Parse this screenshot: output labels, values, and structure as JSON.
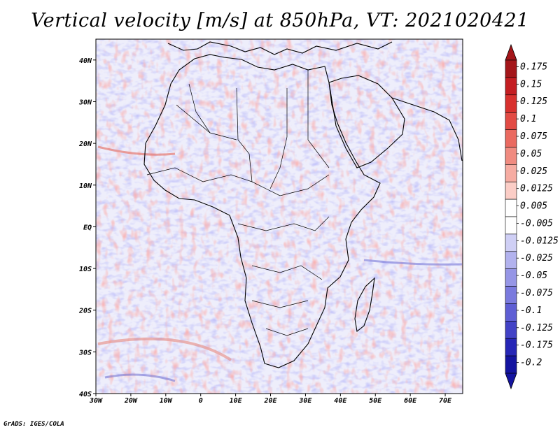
{
  "title": "Vertical velocity [m/s] at 850hPa, VT: 2021020421",
  "map": {
    "type": "heatmap",
    "variable": "Vertical velocity",
    "units": "m/s",
    "level": "850hPa",
    "valid_time": "2021020421",
    "lon_range": [
      -30,
      75
    ],
    "lat_range": [
      -40,
      45
    ],
    "x_ticks": [
      "30W",
      "20W",
      "10W",
      "0",
      "10E",
      "20E",
      "30E",
      "40E",
      "50E",
      "60E",
      "70E"
    ],
    "y_ticks": [
      "40N",
      "30N",
      "20N",
      "10N",
      "EQ",
      "10S",
      "20S",
      "30S",
      "40S"
    ]
  },
  "colorbar": {
    "levels": [
      "0.175",
      "0.15",
      "0.125",
      "0.1",
      "0.075",
      "0.05",
      "0.025",
      "0.0125",
      "0.005",
      "-0.005",
      "-0.0125",
      "-0.025",
      "-0.05",
      "-0.075",
      "-0.1",
      "-0.125",
      "-0.175",
      "-0.2"
    ],
    "colors_top_to_bottom": [
      "#a4161a",
      "#c41e22",
      "#d8312e",
      "#e24b44",
      "#ea6a60",
      "#f08b80",
      "#f6aca2",
      "#fbcdc6",
      "#ffffff",
      "#ffffff",
      "#cfcff5",
      "#b2b2ee",
      "#9696e6",
      "#7a7ade",
      "#5e5ed4",
      "#4242c6",
      "#2626b6",
      "#1414a0"
    ],
    "top_arrow_color": "#a4161a",
    "bottom_arrow_color": "#1414a0"
  },
  "credit": "GrADS: IGES/COLA"
}
